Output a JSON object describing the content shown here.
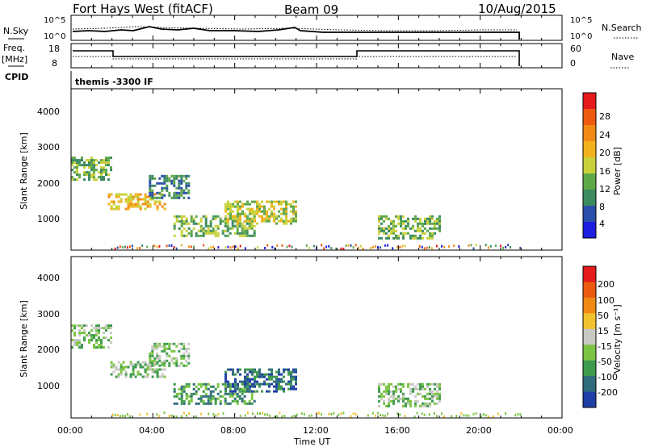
{
  "header": {
    "station": "Fort Hays West (fitACF)",
    "beam": "Beam 09",
    "date": "10/Aug/2015"
  },
  "top_panels": {
    "nsky_label": "N.Sky",
    "nsky_ticks": [
      "10^5",
      "10^0"
    ],
    "nsearch_label": "N.Search",
    "nsearch_ticks": [
      "10^5",
      "10^0"
    ],
    "freq_label": "Freq.",
    "freq_unit": "[MHz]",
    "freq_ticks": [
      "18",
      "8"
    ],
    "nave_label": "Nave",
    "nave_ticks": [
      "60",
      "0"
    ],
    "cpid_label": "CPID",
    "cpid_text": "themis -3300 IF"
  },
  "chart_data": [
    {
      "type": "heatmap",
      "name": "power",
      "ylabel": "Slant Range [km]",
      "y_ticks": [
        "4000",
        "3000",
        "2000",
        "1000"
      ],
      "ylim": [
        200,
        4600
      ],
      "colorbar_label": "Power [dB]",
      "colorbar_ticks": [
        "28",
        "24",
        "20",
        "16",
        "12",
        "8",
        "4"
      ],
      "colors": [
        "#1d1de0",
        "#2a4fa8",
        "#3b8a60",
        "#5fa84a",
        "#c9d13a",
        "#f2b21e",
        "#f08a14",
        "#ee5a10",
        "#e41a1c"
      ],
      "echo_regions": [
        {
          "t_start": 0.0,
          "t_end": 1.9,
          "r_min": 2150,
          "r_max": 2750,
          "level": "12"
        },
        {
          "t_start": 1.8,
          "t_end": 4.6,
          "r_min": 1350,
          "r_max": 1750,
          "level": "20"
        },
        {
          "t_start": 3.8,
          "t_end": 5.8,
          "r_min": 1650,
          "r_max": 2250,
          "level": "8"
        },
        {
          "t_start": 5.0,
          "t_end": 9.0,
          "r_min": 600,
          "r_max": 1150,
          "level": "12"
        },
        {
          "t_start": 7.5,
          "t_end": 11.0,
          "r_min": 900,
          "r_max": 1550,
          "level": "16"
        },
        {
          "t_start": 15.0,
          "t_end": 18.0,
          "r_min": 550,
          "r_max": 1150,
          "level": "12"
        }
      ]
    },
    {
      "type": "heatmap",
      "name": "velocity",
      "ylabel": "Slant Range [km]",
      "y_ticks": [
        "4000",
        "3000",
        "2000",
        "1000"
      ],
      "ylim": [
        200,
        4600
      ],
      "colorbar_label": "Velocity [m s⁻¹]",
      "colorbar_ticks": [
        "200",
        "100",
        "50",
        "15",
        "-15",
        "-50",
        "-100",
        "-200"
      ],
      "colors": [
        "#1f3fa6",
        "#2f6b7a",
        "#3e9a4c",
        "#7cc444",
        "#c9c9c4",
        "#f2c12e",
        "#f08a14",
        "#ec5a10",
        "#e41a1c"
      ],
      "echo_regions": [
        {
          "t_start": 0.0,
          "t_end": 1.9,
          "r_min": 2150,
          "r_max": 2750,
          "level": "-15"
        },
        {
          "t_start": 1.8,
          "t_end": 4.6,
          "r_min": 1350,
          "r_max": 1750,
          "level": "-15"
        },
        {
          "t_start": 3.8,
          "t_end": 5.8,
          "r_min": 1650,
          "r_max": 2250,
          "level": "-15"
        },
        {
          "t_start": 5.0,
          "t_end": 9.0,
          "r_min": 600,
          "r_max": 1150,
          "level": "-50"
        },
        {
          "t_start": 7.5,
          "t_end": 11.0,
          "r_min": 900,
          "r_max": 1550,
          "level": "-100"
        },
        {
          "t_start": 15.0,
          "t_end": 18.0,
          "r_min": 550,
          "r_max": 1150,
          "level": "-15"
        }
      ]
    }
  ],
  "x_axis": {
    "label": "Time UT",
    "ticks": [
      "00:00",
      "04:00",
      "08:00",
      "12:00",
      "16:00",
      "20:00",
      "00:00"
    ]
  }
}
